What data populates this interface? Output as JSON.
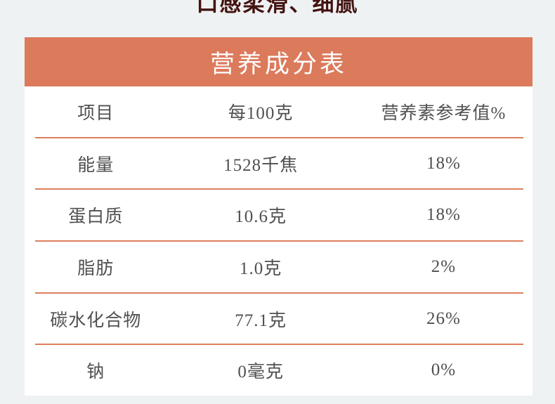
{
  "theme": {
    "background_color": "#eff2f3",
    "accent_color": "#dc7a5c",
    "divider_color": "#de7e5e",
    "text_color": "#505050",
    "caption_color": "#431310"
  },
  "caption": {
    "text": "口感柔滑、细腻"
  },
  "nutrition_table": {
    "title": "营养成分表",
    "columns": [
      "项目",
      "每100克",
      "营养素参考值%"
    ],
    "rows": [
      {
        "item": "能量",
        "per_100g": "1528千焦",
        "nrv": "18%"
      },
      {
        "item": "蛋白质",
        "per_100g": "10.6克",
        "nrv": "18%"
      },
      {
        "item": "脂肪",
        "per_100g": "1.0克",
        "nrv": "2%"
      },
      {
        "item": "碳水化合物",
        "per_100g": "77.1克",
        "nrv": "26%"
      },
      {
        "item": "钠",
        "per_100g": "0毫克",
        "nrv": "0%"
      }
    ]
  }
}
